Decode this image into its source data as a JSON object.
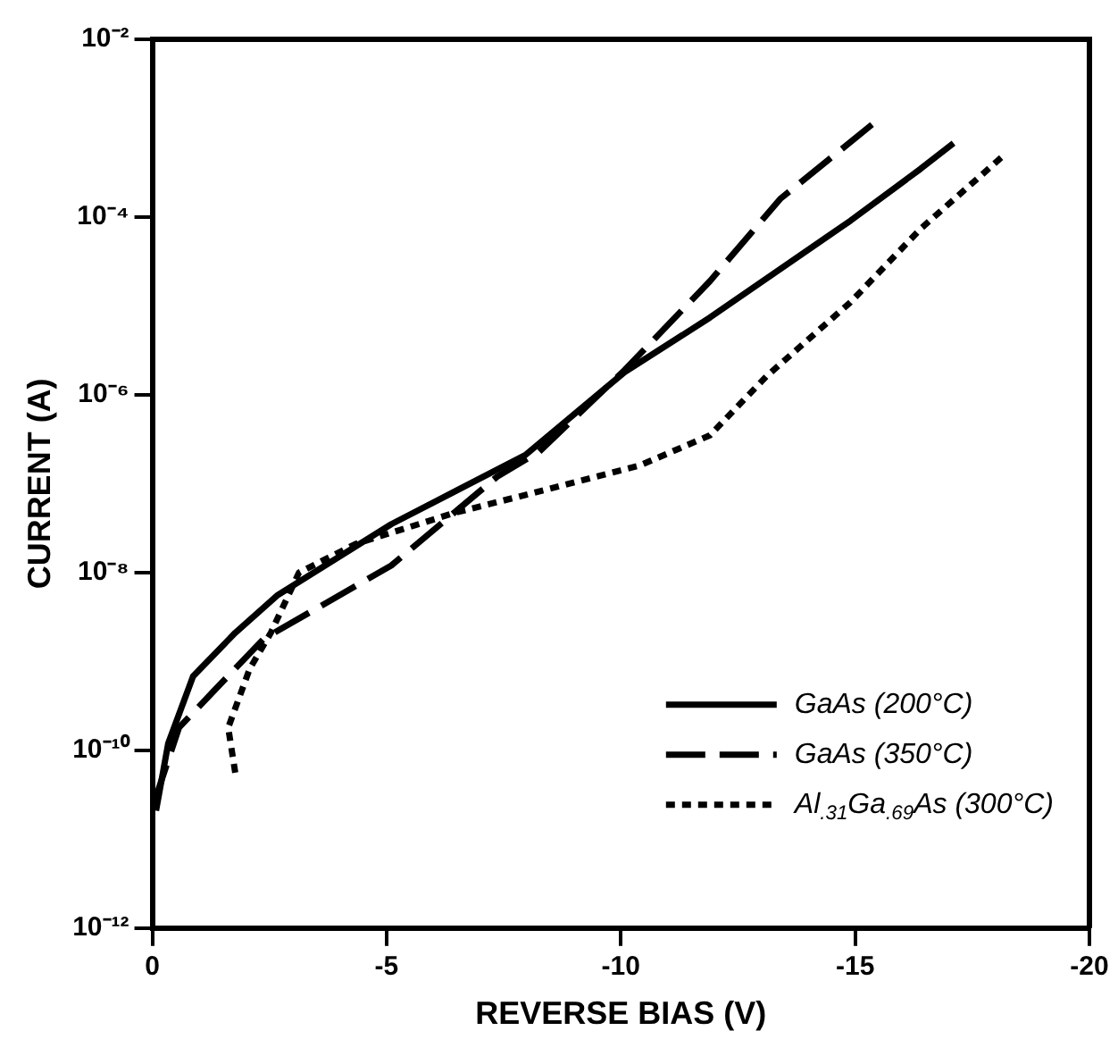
{
  "chart_data": {
    "type": "line",
    "xlabel": "REVERSE BIAS (V)",
    "ylabel": "CURRENT (A)",
    "log": "y",
    "grid": false,
    "legend": "bottom right",
    "marker": "none",
    "xlim": [
      0,
      -20
    ],
    "xticks": [
      0,
      -5,
      -10,
      -15,
      -20
    ],
    "ylim": [
      1e-12,
      0.01
    ],
    "yticks": [
      {
        "value": 1e-12,
        "label": "10⁻¹²"
      },
      {
        "value": 1e-10,
        "label": "10⁻¹⁰"
      },
      {
        "value": 1e-08,
        "label": "10⁻⁸"
      },
      {
        "value": 1e-06,
        "label": "10⁻⁶"
      },
      {
        "value": 0.0001,
        "label": "10⁻⁴"
      },
      {
        "value": 0.01,
        "label": "10⁻²"
      }
    ],
    "series": [
      {
        "name": "GaAs (200°C)",
        "color": "#000000",
        "line_style": "solid",
        "x": [
          -0.08,
          -0.34,
          -0.87,
          -1.77,
          -2.68,
          -5.1,
          -7.96,
          -10.08,
          -11.9,
          -14.9,
          -16.4,
          -17.1
        ],
        "values": [
          2.1e-11,
          1.2e-10,
          6.8e-10,
          2.1e-09,
          5.6e-09,
          3.5e-08,
          2.1e-07,
          1.8e-06,
          7.4e-06,
          9.1e-05,
          0.00035,
          0.00068
        ]
      },
      {
        "name": "GaAs (350°C)",
        "color": "#000000",
        "line_style": "dashed",
        "x": [
          -0.04,
          -0.57,
          -1.32,
          -2.38,
          -5.1,
          -7.36,
          -8.26,
          -10.08,
          -11.9,
          -13.4,
          -15.36
        ],
        "values": [
          2.6e-11,
          1.8e-10,
          4.7e-10,
          1.8e-09,
          1.2e-08,
          1.2e-07,
          2.3e-07,
          1.9e-06,
          1.9e-05,
          0.00016,
          0.0011
        ]
      },
      {
        "name": "Al$_{.31}$Ga$_{.69}$As (300°C)",
        "color": "#000000",
        "line_style": "dotted",
        "x": [
          -1.77,
          -1.62,
          -2.08,
          -2.53,
          -3.13,
          -4.34,
          -6.45,
          -7.36,
          -10.4,
          -11.9,
          -13.1,
          -14.9,
          -16.4,
          -18.2
        ],
        "values": [
          5.6e-11,
          1.8e-10,
          8.3e-10,
          2.1e-09,
          1e-08,
          2.1e-08,
          4.7e-08,
          6.2e-08,
          1.6e-07,
          3.5e-07,
          1.6e-06,
          1.1e-05,
          7.4e-05,
          0.00051
        ]
      }
    ]
  }
}
